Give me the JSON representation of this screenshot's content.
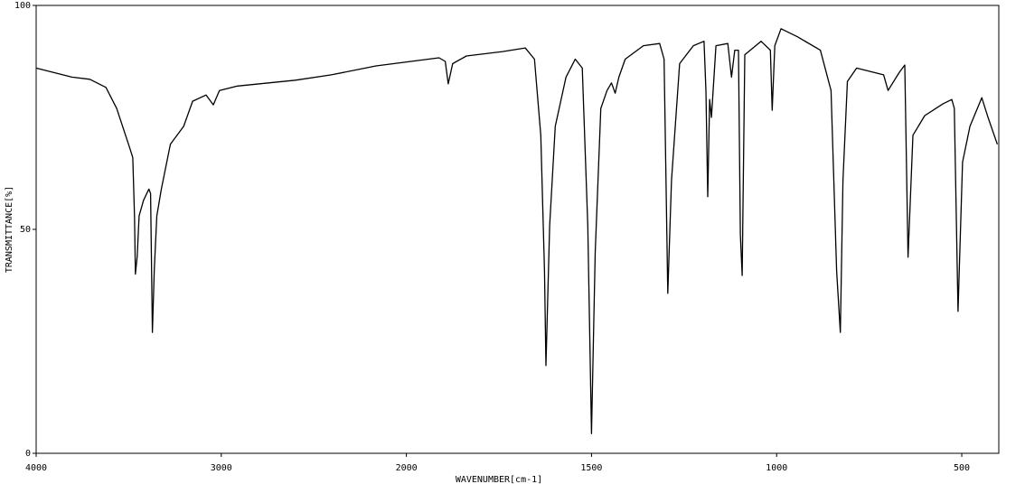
{
  "chart_data": {
    "type": "line",
    "xlabel": "WAVENUMBER[cm-1]",
    "ylabel": "TRANSMITTANCE[%]",
    "xlim": [
      4000,
      400
    ],
    "xticks": [
      4000,
      3000,
      2000,
      1500,
      1000,
      500
    ],
    "ylim": [
      0,
      100
    ],
    "yticks": [
      0,
      50,
      100
    ],
    "series": [
      {
        "color": "#000000",
        "x": [
          4000,
          3807,
          3710,
          3623,
          3565,
          3493,
          3478,
          3469,
          3464,
          3454,
          3444,
          3420,
          3391,
          3382,
          3372,
          3362,
          3348,
          3324,
          3275,
          3203,
          3155,
          3082,
          3043,
          3010,
          2913,
          2599,
          2406,
          2164,
          1912,
          1895,
          1887,
          1875,
          1838,
          1740,
          1679,
          1654,
          1637,
          1627,
          1623,
          1613,
          1598,
          1569,
          1544,
          1525,
          1510,
          1500,
          1490,
          1475,
          1458,
          1446,
          1436,
          1426,
          1409,
          1360,
          1316,
          1304,
          1294,
          1284,
          1262,
          1225,
          1196,
          1191,
          1186,
          1181,
          1176,
          1164,
          1132,
          1122,
          1113,
          1103,
          1098,
          1093,
          1086,
          1042,
          1017,
          1012,
          1005,
          988,
          944,
          882,
          853,
          838,
          828,
          821,
          809,
          784,
          711,
          699,
          669,
          654,
          645,
          632,
          600,
          551,
          527,
          520,
          510,
          498,
          478,
          446,
          429,
          404
        ],
        "values": [
          86,
          84,
          83.5,
          81.7,
          77,
          68,
          66,
          53,
          40,
          44,
          53,
          56.5,
          59,
          58,
          27,
          41,
          53,
          59,
          69,
          73,
          78.6,
          80,
          77.8,
          81,
          82,
          83.3,
          84.5,
          86.5,
          88.3,
          87.5,
          82.5,
          87,
          88.7,
          89.7,
          90.5,
          88,
          71,
          40.7,
          19.6,
          50.8,
          73,
          84,
          88,
          86,
          50.8,
          4.4,
          44.8,
          77,
          81,
          82.7,
          80.4,
          84,
          88,
          91,
          91.5,
          88,
          35.7,
          60.9,
          87,
          91,
          92,
          81,
          57.3,
          79,
          75,
          91,
          91.5,
          84,
          90,
          90,
          48.8,
          39.7,
          89,
          92,
          90,
          76.6,
          91,
          94.8,
          93,
          90,
          81,
          40.7,
          27,
          60.9,
          83,
          86,
          84.5,
          81,
          85,
          86.7,
          43.8,
          71,
          75.4,
          78,
          79,
          77,
          31.7,
          65,
          73,
          79.4,
          75,
          69
        ]
      }
    ]
  }
}
